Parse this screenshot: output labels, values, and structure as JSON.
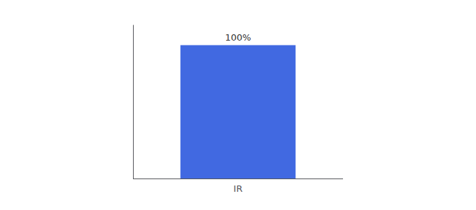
{
  "chart_data": {
    "type": "bar",
    "categories": [
      "IR"
    ],
    "values": [
      100
    ],
    "value_labels": [
      "100%"
    ],
    "data_labels": true,
    "color": "#4169e1",
    "ylim": [
      0,
      115
    ],
    "tick_labels": "x",
    "grid": false
  }
}
